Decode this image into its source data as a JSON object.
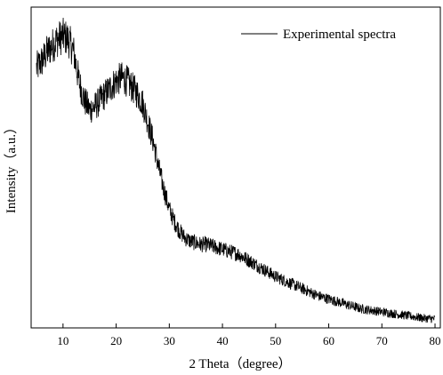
{
  "chart_data": {
    "type": "line",
    "title": "",
    "xlabel": "2 Theta（degree）",
    "ylabel": "Intensity（a.u.）",
    "xlim": [
      4,
      81
    ],
    "ylim": [
      0,
      1
    ],
    "x_ticks": [
      10,
      20,
      30,
      40,
      50,
      60,
      70,
      80
    ],
    "y_ticks_shown": false,
    "grid": false,
    "legend_position": "top-right",
    "series": [
      {
        "name": "Experimental spectra",
        "color": "#000000",
        "style": "noisy-line",
        "x": [
          5,
          6,
          7,
          8,
          9,
          10,
          11,
          12,
          13,
          14,
          15,
          16,
          17,
          18,
          19,
          20,
          21,
          22,
          23,
          24,
          25,
          26,
          27,
          28,
          29,
          30,
          31,
          32,
          33,
          34,
          35,
          36,
          37,
          38,
          39,
          40,
          41,
          42,
          43,
          44,
          45,
          46,
          47,
          48,
          49,
          50,
          52,
          54,
          56,
          58,
          60,
          62,
          64,
          66,
          68,
          70,
          72,
          74,
          76,
          78,
          80
        ],
        "values": [
          0.81,
          0.83,
          0.86,
          0.88,
          0.9,
          0.91,
          0.9,
          0.86,
          0.77,
          0.71,
          0.68,
          0.69,
          0.71,
          0.73,
          0.75,
          0.77,
          0.78,
          0.77,
          0.75,
          0.73,
          0.7,
          0.64,
          0.58,
          0.5,
          0.43,
          0.37,
          0.33,
          0.3,
          0.28,
          0.27,
          0.265,
          0.26,
          0.26,
          0.255,
          0.25,
          0.245,
          0.24,
          0.235,
          0.23,
          0.22,
          0.21,
          0.2,
          0.19,
          0.18,
          0.17,
          0.16,
          0.145,
          0.13,
          0.115,
          0.1,
          0.09,
          0.08,
          0.07,
          0.06,
          0.055,
          0.05,
          0.045,
          0.04,
          0.035,
          0.03,
          0.028
        ]
      }
    ]
  }
}
